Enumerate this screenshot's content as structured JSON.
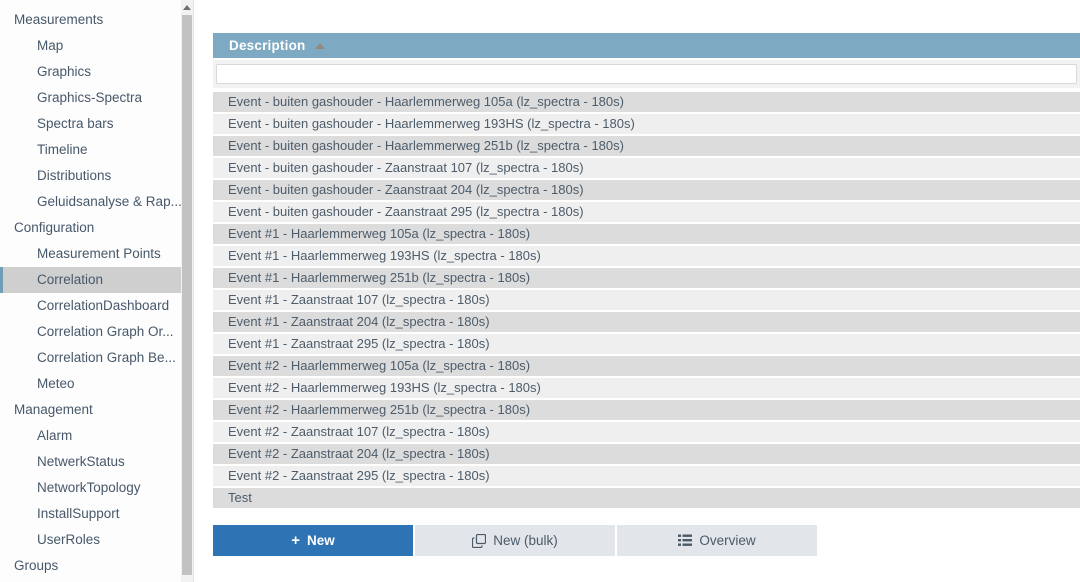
{
  "sidebar": {
    "items": [
      {
        "label": "Measurements",
        "level": 0,
        "selected": false
      },
      {
        "label": "Map",
        "level": 1,
        "selected": false
      },
      {
        "label": "Graphics",
        "level": 1,
        "selected": false
      },
      {
        "label": "Graphics-Spectra",
        "level": 1,
        "selected": false
      },
      {
        "label": "Spectra bars",
        "level": 1,
        "selected": false
      },
      {
        "label": "Timeline",
        "level": 1,
        "selected": false
      },
      {
        "label": "Distributions",
        "level": 1,
        "selected": false
      },
      {
        "label": "Geluidsanalyse & Rap...",
        "level": 1,
        "selected": false
      },
      {
        "label": "Configuration",
        "level": 0,
        "selected": false
      },
      {
        "label": "Measurement Points",
        "level": 1,
        "selected": false
      },
      {
        "label": "Correlation",
        "level": 1,
        "selected": true
      },
      {
        "label": "CorrelationDashboard",
        "level": 1,
        "selected": false
      },
      {
        "label": "Correlation Graph Or...",
        "level": 1,
        "selected": false
      },
      {
        "label": "Correlation Graph Be...",
        "level": 1,
        "selected": false
      },
      {
        "label": "Meteo",
        "level": 1,
        "selected": false
      },
      {
        "label": "Management",
        "level": 0,
        "selected": false
      },
      {
        "label": "Alarm",
        "level": 1,
        "selected": false
      },
      {
        "label": "NetwerkStatus",
        "level": 1,
        "selected": false
      },
      {
        "label": "NetworkTopology",
        "level": 1,
        "selected": false
      },
      {
        "label": "InstallSupport",
        "level": 1,
        "selected": false
      },
      {
        "label": "UserRoles",
        "level": 1,
        "selected": false
      },
      {
        "label": "Groups",
        "level": 0,
        "selected": false
      }
    ]
  },
  "table": {
    "header": "Description",
    "sort_direction": "ascending",
    "filter_value": "",
    "rows": [
      "Event - buiten gashouder - Haarlemmerweg 105a (lz_spectra - 180s)",
      "Event - buiten gashouder - Haarlemmerweg 193HS (lz_spectra - 180s)",
      "Event - buiten gashouder - Haarlemmerweg 251b (lz_spectra - 180s)",
      "Event - buiten gashouder - Zaanstraat 107 (lz_spectra - 180s)",
      "Event - buiten gashouder - Zaanstraat 204 (lz_spectra - 180s)",
      "Event - buiten gashouder - Zaanstraat 295 (lz_spectra - 180s)",
      "Event #1 - Haarlemmerweg 105a (lz_spectra - 180s)",
      "Event #1 - Haarlemmerweg 193HS (lz_spectra - 180s)",
      "Event #1 - Haarlemmerweg 251b (lz_spectra - 180s)",
      "Event #1 - Zaanstraat 107 (lz_spectra - 180s)",
      "Event #1 - Zaanstraat 204 (lz_spectra - 180s)",
      "Event #1 - Zaanstraat 295 (lz_spectra - 180s)",
      "Event #2 - Haarlemmerweg 105a (lz_spectra - 180s)",
      "Event #2 - Haarlemmerweg 193HS (lz_spectra - 180s)",
      "Event #2 - Haarlemmerweg 251b (lz_spectra - 180s)",
      "Event #2 - Zaanstraat 107 (lz_spectra - 180s)",
      "Event #2 - Zaanstraat 204 (lz_spectra - 180s)",
      "Event #2 - Zaanstraat 295 (lz_spectra - 180s)",
      "Test"
    ]
  },
  "actions": {
    "new_label": "New",
    "new_bulk_label": "New (bulk)",
    "overview_label": "Overview"
  },
  "colors": {
    "header_bar": "#7ea9c2",
    "primary_button": "#2e74b4",
    "secondary_button": "#e2e5e9",
    "row_dark": "#dcdcdc",
    "row_light": "#efefef",
    "text": "#4d5c6a",
    "selected_item_bg": "#cfcfcf",
    "selected_item_accent": "#6f9fb5",
    "sort_arrow": "#95887b"
  }
}
